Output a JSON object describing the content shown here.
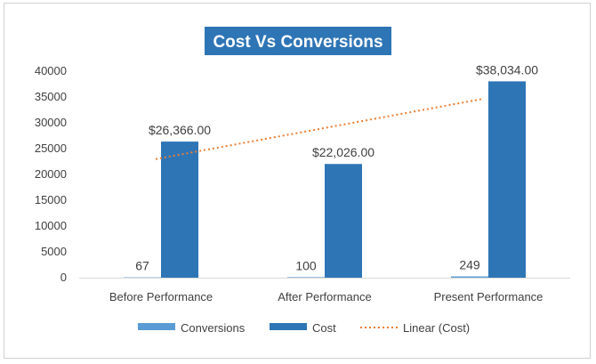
{
  "chart_data": {
    "type": "bar",
    "title": "Cost Vs Conversions",
    "xlabel": "",
    "ylabel": "",
    "ylim": [
      0,
      40000
    ],
    "yticks": [
      0,
      5000,
      10000,
      15000,
      20000,
      25000,
      30000,
      35000,
      40000
    ],
    "categories": [
      "Before Performance",
      "After Performance",
      "Present Performance"
    ],
    "series": [
      {
        "name": "Conversions",
        "values": [
          67,
          100,
          249
        ],
        "data_labels": [
          "67",
          "100",
          "249"
        ],
        "color": "#5b9bd5"
      },
      {
        "name": "Cost",
        "values": [
          26366,
          22026,
          38034
        ],
        "data_labels": [
          "$26,366.00",
          "$22,026.00",
          "$38,034.00"
        ],
        "color": "#2e75b6"
      }
    ],
    "trendline": {
      "name": "Linear (Cost)",
      "type": "linear",
      "of_series": "Cost",
      "color": "#ed7d31"
    },
    "grid": false,
    "legend": "bottom",
    "title_background": "#2e75b6"
  }
}
